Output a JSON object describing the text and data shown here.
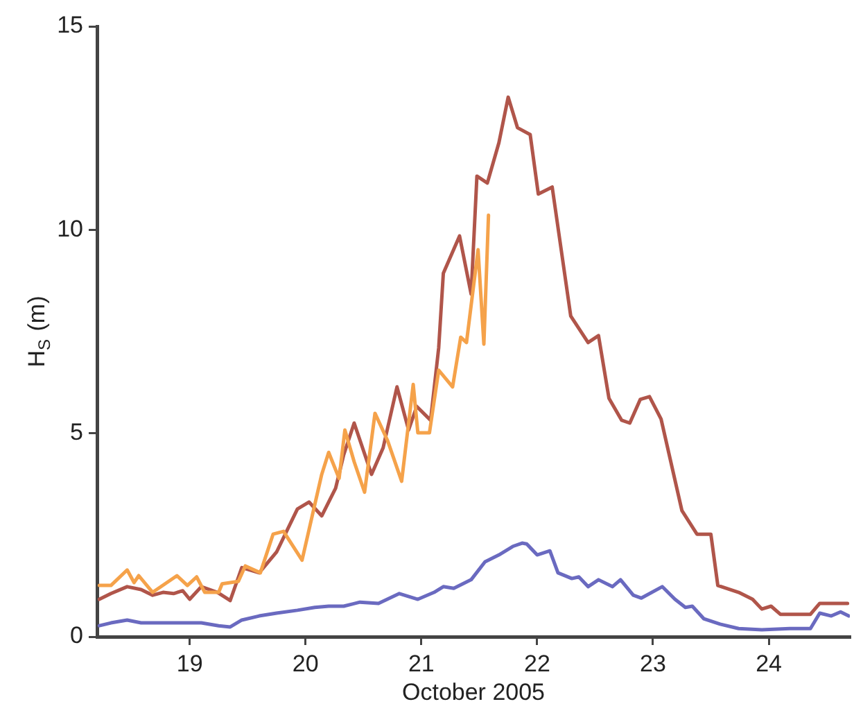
{
  "chart_data": {
    "type": "line",
    "xlabel": "October 2005",
    "ylabel": "H$_{S}$ (m)",
    "xlim": [
      18.2,
      24.7
    ],
    "xticks": [
      19,
      20,
      21,
      22,
      23,
      24
    ],
    "ylim": [
      0,
      15
    ],
    "yticks": [
      0,
      5,
      10,
      15
    ],
    "grid": false,
    "legend": false,
    "marker": "none",
    "line_style": "solid",
    "series": [
      {
        "color": "#f5a24a",
        "x": [
          18.22,
          18.32,
          18.46,
          18.52,
          18.56,
          18.68,
          18.89,
          18.98,
          19.06,
          19.13,
          19.25,
          19.28,
          19.42,
          19.48,
          19.61,
          19.72,
          19.81,
          19.97,
          20.14,
          20.2,
          20.29,
          20.34,
          20.42,
          20.51,
          20.6,
          20.71,
          20.83,
          20.93,
          20.97,
          21.07,
          21.15,
          21.27,
          21.34,
          21.39,
          21.49,
          21.54,
          21.58
        ],
        "values": [
          1.26,
          1.26,
          1.64,
          1.33,
          1.5,
          1.09,
          1.5,
          1.26,
          1.47,
          1.09,
          1.09,
          1.3,
          1.36,
          1.74,
          1.57,
          2.52,
          2.59,
          1.88,
          3.99,
          4.53,
          3.89,
          5.08,
          4.3,
          3.55,
          5.49,
          4.81,
          3.82,
          6.2,
          5.01,
          5.01,
          6.55,
          6.14,
          7.36,
          7.23,
          9.51,
          7.19,
          10.36
        ]
      },
      {
        "color": "#b0554a",
        "x": [
          18.22,
          18.32,
          18.46,
          18.58,
          18.68,
          18.77,
          18.86,
          18.94,
          19.0,
          19.1,
          19.24,
          19.35,
          19.45,
          19.6,
          19.75,
          19.93,
          20.03,
          20.14,
          20.26,
          20.33,
          20.42,
          20.57,
          20.67,
          20.79,
          20.89,
          20.96,
          21.08,
          21.15,
          21.19,
          21.33,
          21.43,
          21.48,
          21.57,
          21.67,
          21.75,
          21.83,
          21.94,
          22.01,
          22.13,
          22.29,
          22.44,
          22.53,
          22.62,
          22.73,
          22.8,
          22.89,
          22.97,
          23.07,
          23.25,
          23.38,
          23.5,
          23.56,
          23.74,
          23.86,
          23.94,
          24.02,
          24.1,
          24.36,
          24.44,
          24.68
        ],
        "values": [
          0.92,
          1.06,
          1.23,
          1.16,
          1.02,
          1.09,
          1.06,
          1.13,
          0.92,
          1.23,
          1.09,
          0.89,
          1.7,
          1.57,
          2.08,
          3.14,
          3.31,
          2.97,
          3.65,
          4.47,
          5.25,
          3.99,
          4.64,
          6.14,
          5.08,
          5.66,
          5.32,
          7.1,
          8.93,
          9.85,
          8.42,
          11.32,
          11.15,
          12.14,
          13.26,
          12.51,
          12.34,
          10.88,
          11.05,
          7.88,
          7.23,
          7.4,
          5.86,
          5.32,
          5.25,
          5.83,
          5.9,
          5.35,
          3.1,
          2.52,
          2.52,
          1.26,
          1.09,
          0.92,
          0.68,
          0.75,
          0.55,
          0.55,
          0.82,
          0.82
        ]
      },
      {
        "color": "#6a6ac0",
        "x": [
          18.22,
          18.32,
          18.46,
          18.58,
          18.77,
          18.94,
          19.1,
          19.25,
          19.35,
          19.45,
          19.6,
          19.75,
          19.93,
          20.08,
          20.2,
          20.33,
          20.47,
          20.63,
          20.81,
          20.97,
          21.11,
          21.19,
          21.28,
          21.43,
          21.55,
          21.67,
          21.79,
          21.87,
          21.91,
          22.0,
          22.11,
          22.18,
          22.3,
          22.36,
          22.44,
          22.53,
          22.65,
          22.72,
          22.83,
          22.9,
          23.08,
          23.19,
          23.28,
          23.34,
          23.44,
          23.58,
          23.74,
          23.94,
          24.18,
          24.36,
          24.44,
          24.54,
          24.62,
          24.69
        ],
        "values": [
          0.27,
          0.34,
          0.41,
          0.34,
          0.34,
          0.34,
          0.34,
          0.27,
          0.24,
          0.41,
          0.51,
          0.58,
          0.65,
          0.72,
          0.75,
          0.75,
          0.85,
          0.82,
          1.06,
          0.92,
          1.09,
          1.23,
          1.19,
          1.4,
          1.84,
          2.01,
          2.22,
          2.3,
          2.28,
          2.01,
          2.11,
          1.57,
          1.43,
          1.47,
          1.23,
          1.4,
          1.23,
          1.4,
          1.02,
          0.95,
          1.23,
          0.92,
          0.72,
          0.75,
          0.44,
          0.31,
          0.2,
          0.17,
          0.2,
          0.2,
          0.58,
          0.51,
          0.61,
          0.51
        ]
      }
    ]
  }
}
